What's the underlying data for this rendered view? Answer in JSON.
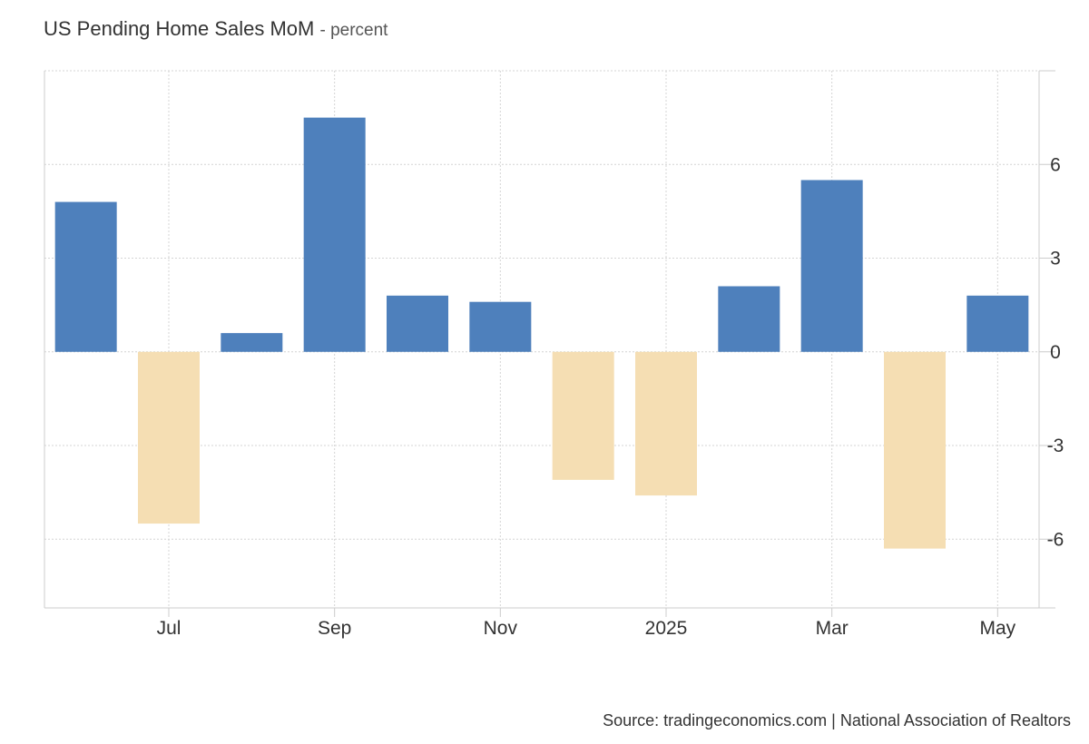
{
  "chart_data": {
    "type": "bar",
    "title": "US Pending Home Sales MoM",
    "subtitle": "- percent",
    "source": "Source: tradingeconomics.com | National Association of Realtors",
    "categories": [
      "2024-06",
      "2024-07",
      "2024-08",
      "2024-09",
      "2024-10",
      "2024-11",
      "2024-12",
      "2025-01",
      "2025-02",
      "2025-03",
      "2025-04",
      "2025-05"
    ],
    "values": [
      4.8,
      -5.5,
      0.6,
      7.5,
      1.8,
      1.6,
      -4.1,
      -4.6,
      2.1,
      5.5,
      -6.3,
      1.8
    ],
    "ylim": [
      -8.2,
      9.0
    ],
    "yticks": [
      6,
      3,
      0,
      -3,
      -6
    ],
    "ytick_labels": [
      "6",
      "3",
      "0",
      "-3",
      "-6"
    ],
    "xticks": [
      {
        "label": "Jul",
        "index": 1
      },
      {
        "label": "Sep",
        "index": 3
      },
      {
        "label": "Nov",
        "index": 5
      },
      {
        "label": "2025",
        "index": 7
      },
      {
        "label": "Mar",
        "index": 9
      },
      {
        "label": "May",
        "index": 11
      }
    ],
    "xlabel": "",
    "ylabel": "",
    "grid": true,
    "colors": {
      "positive": "#4e80bc",
      "negative": "#f5deb3",
      "grid": "#d4d4d4",
      "axis": "#cccccc"
    }
  }
}
